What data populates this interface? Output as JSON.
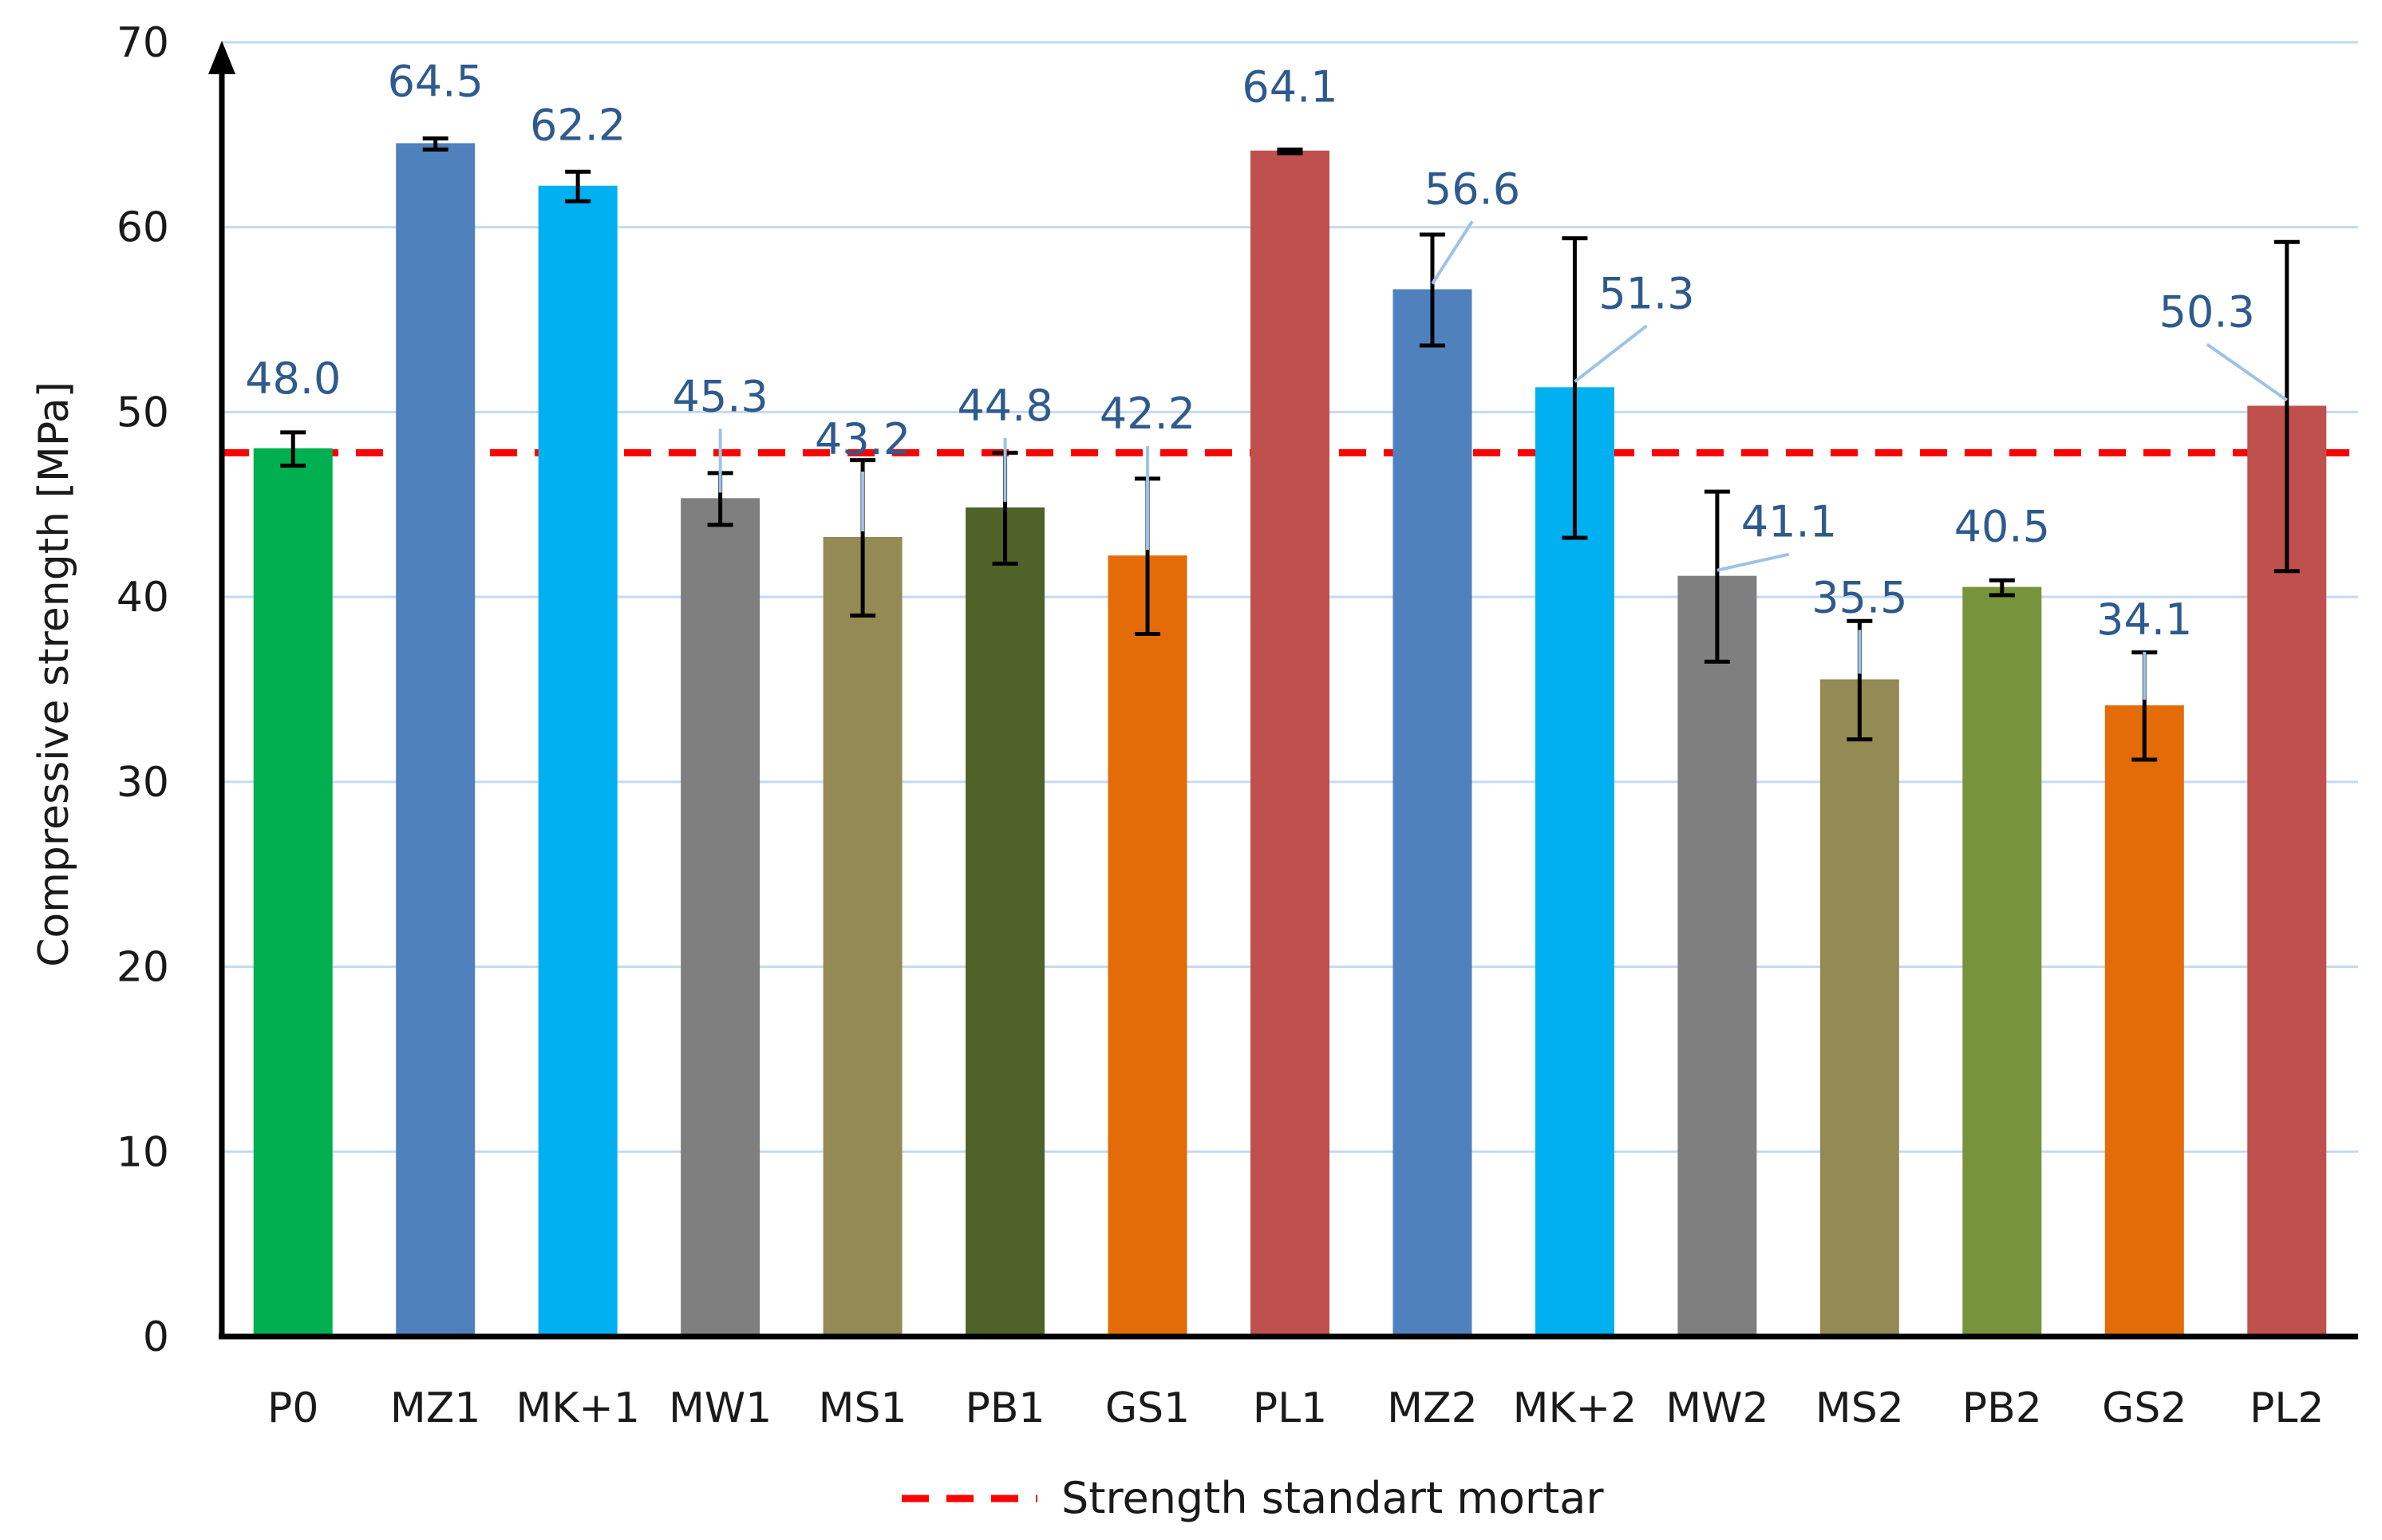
{
  "chart_data": {
    "type": "bar",
    "title": "",
    "xlabel": "",
    "ylabel": "Compressive strength [MPa]",
    "ylim": [
      0,
      70
    ],
    "yticks": [
      0,
      10,
      20,
      30,
      40,
      50,
      60,
      70
    ],
    "grid": true,
    "categories": [
      "P0",
      "MZ1",
      "MK+1",
      "MW1",
      "MS1",
      "PB1",
      "GS1",
      "PL1",
      "MZ2",
      "MK+2",
      "MW2",
      "MS2",
      "PB2",
      "GS2",
      "PL2"
    ],
    "values": [
      48.0,
      64.5,
      62.2,
      45.3,
      43.2,
      44.8,
      42.2,
      64.1,
      56.6,
      51.3,
      41.1,
      35.5,
      40.5,
      34.1,
      50.3
    ],
    "value_labels": [
      "48.0",
      "64.5",
      "62.2",
      "45.3",
      "43.2",
      "44.8",
      "42.2",
      "64.1",
      "56.6",
      "51.3",
      "41.1",
      "35.5",
      "40.5",
      "34.1",
      "50.3"
    ],
    "error_bars": [
      0.9,
      0.3,
      0.8,
      1.4,
      4.2,
      3.0,
      4.2,
      0.1,
      3.0,
      8.1,
      4.6,
      3.2,
      0.4,
      2.9,
      8.9
    ],
    "bar_colors": [
      "#00b050",
      "#4f81bd",
      "#00b0f0",
      "#7f7f7f",
      "#948a54",
      "#4f6228",
      "#e36c09",
      "#c0504d",
      "#4f81bd",
      "#00b0f0",
      "#7f7f7f",
      "#948a54",
      "#77933c",
      "#e36c09",
      "#c0504d"
    ],
    "reference_line": {
      "value": 47.8,
      "label": "Strength standart mortar",
      "color": "#ff0000"
    },
    "legend_position": "bottom",
    "grid_color": "#c5d9f1",
    "axis_color": "#000000",
    "label_color": "#2e5a8e"
  }
}
